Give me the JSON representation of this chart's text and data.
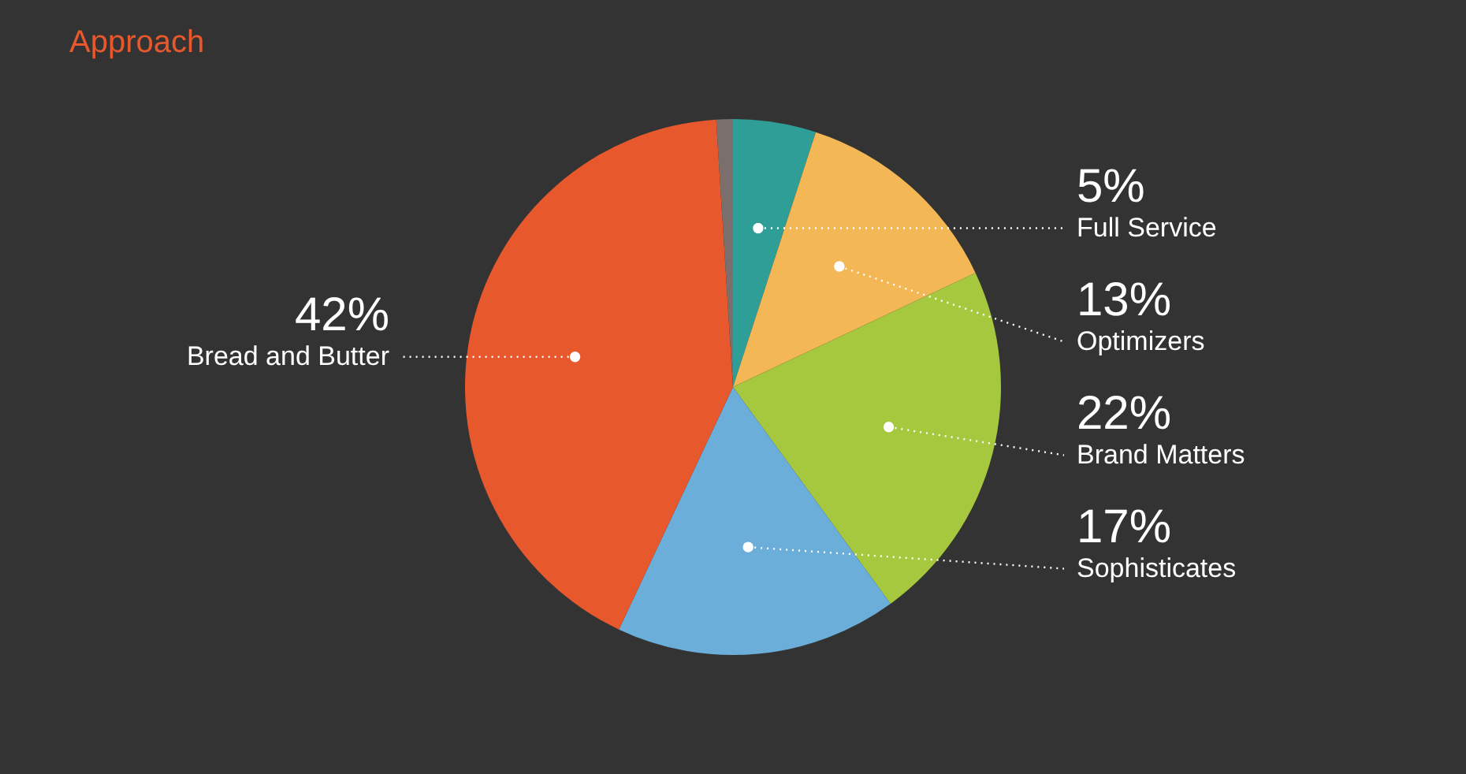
{
  "chart_data": {
    "type": "pie",
    "title": "Approach",
    "categories": [
      "Full Service",
      "Optimizers",
      "Brand Matters",
      "Sophisticates",
      "Bread and Butter",
      null
    ],
    "values": [
      5,
      13,
      22,
      17,
      42,
      1
    ],
    "colors": [
      "#2e9e96",
      "#f4b755",
      "#a6c83f",
      "#6baed9",
      "#e8582d",
      "#7a6f6c"
    ],
    "value_labels": [
      "5%",
      "13%",
      "22%",
      "17%",
      "42%",
      null
    ]
  }
}
